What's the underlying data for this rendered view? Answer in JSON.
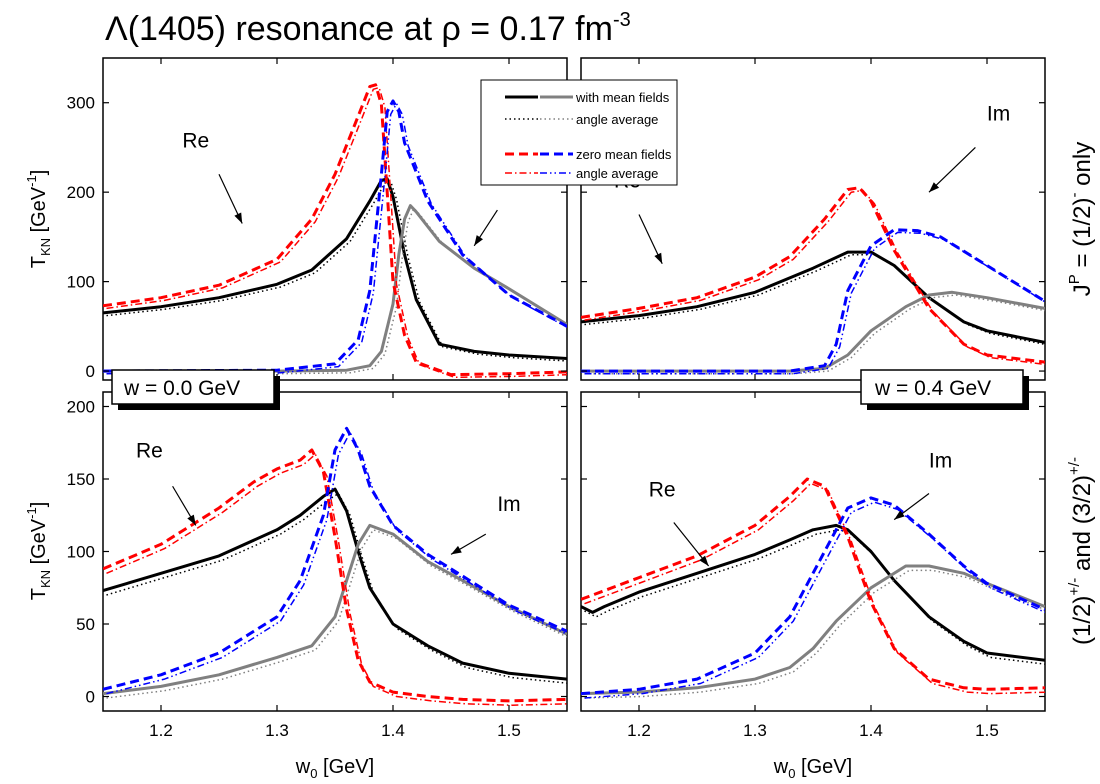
{
  "figure": {
    "title_main": "Λ(1405) resonance at ρ = 0.17 fm",
    "title_sup": "-3",
    "xlabel_main": "w",
    "xlabel_sub": "0",
    "xlabel_unit": " [GeV]",
    "ylabel_main": "T",
    "ylabel_sub": "KN",
    "ylabel_unit": " [GeV",
    "ylabel_sup": "-1",
    "ylabel_close": "]",
    "row_label_top": {
      "a": "J",
      "b": "P",
      "c": " = (1/2)",
      "d": "-",
      "e": " only"
    },
    "row_label_bottom": {
      "a": "(1/2)",
      "b": "+/-",
      "c": " and (3/2)",
      "d": "+/-"
    },
    "box_left": "w = 0.0 GeV",
    "box_right": "w = 0.4 GeV",
    "legend": {
      "with_mean_fields": "with mean fields",
      "angle_average_1": "angle average",
      "zero_mean_fields": "zero mean fields",
      "angle_average_2": "angle average"
    },
    "colors": {
      "with_mf": "#000000",
      "with_mf_im": "#808080",
      "zero_mf": "#ff0000",
      "zero_mf_im": "#0000ff"
    }
  },
  "chart_data": [
    {
      "type": "line",
      "panel": "top-left",
      "xlim": [
        1.15,
        1.55
      ],
      "ylim": [
        -10,
        350
      ],
      "xticks": [],
      "yticks": [
        "0",
        "100",
        "200",
        "300"
      ],
      "annotations": [
        "Re",
        "Im"
      ],
      "series": [
        {
          "name": "with mean fields",
          "part": "Re",
          "x": [
            1.15,
            1.2,
            1.25,
            1.3,
            1.33,
            1.36,
            1.38,
            1.39,
            1.395,
            1.4,
            1.41,
            1.42,
            1.44,
            1.47,
            1.5,
            1.55
          ],
          "y": [
            65,
            72,
            82,
            97,
            113,
            148,
            190,
            213,
            215,
            195,
            130,
            80,
            30,
            22,
            18,
            14
          ]
        },
        {
          "name": "with mean fields",
          "part": "Im",
          "x": [
            1.15,
            1.3,
            1.36,
            1.38,
            1.39,
            1.4,
            1.405,
            1.41,
            1.415,
            1.42,
            1.44,
            1.47,
            1.5,
            1.55
          ],
          "y": [
            0,
            0,
            1,
            6,
            22,
            75,
            130,
            170,
            185,
            178,
            145,
            115,
            92,
            52
          ]
        },
        {
          "name": "zero mean fields",
          "part": "Re",
          "x": [
            1.15,
            1.2,
            1.25,
            1.3,
            1.33,
            1.35,
            1.37,
            1.38,
            1.385,
            1.39,
            1.395,
            1.4,
            1.41,
            1.42,
            1.45,
            1.5,
            1.55
          ],
          "y": [
            73,
            82,
            96,
            125,
            170,
            220,
            285,
            318,
            320,
            298,
            200,
            100,
            40,
            10,
            -4,
            -3,
            -1
          ]
        },
        {
          "name": "zero mean fields",
          "part": "Im",
          "x": [
            1.15,
            1.3,
            1.35,
            1.37,
            1.38,
            1.39,
            1.395,
            1.4,
            1.405,
            1.41,
            1.43,
            1.46,
            1.5,
            1.55
          ],
          "y": [
            0,
            1,
            8,
            35,
            90,
            220,
            290,
            302,
            290,
            255,
            190,
            130,
            85,
            50
          ]
        }
      ]
    },
    {
      "type": "line",
      "panel": "top-right",
      "xlim": [
        1.15,
        1.55
      ],
      "ylim": [
        -10,
        350
      ],
      "xticks": [],
      "yticks": [],
      "annotations": [
        "Re",
        "Im"
      ],
      "series": [
        {
          "name": "with mean fields",
          "part": "Re",
          "x": [
            1.15,
            1.2,
            1.25,
            1.3,
            1.35,
            1.38,
            1.4,
            1.42,
            1.45,
            1.48,
            1.5,
            1.55
          ],
          "y": [
            55,
            62,
            72,
            88,
            115,
            133,
            133,
            118,
            82,
            55,
            45,
            32
          ]
        },
        {
          "name": "with mean fields",
          "part": "Im",
          "x": [
            1.15,
            1.33,
            1.36,
            1.38,
            1.4,
            1.43,
            1.45,
            1.47,
            1.5,
            1.55
          ],
          "y": [
            0,
            0,
            3,
            18,
            45,
            72,
            85,
            88,
            82,
            70
          ]
        },
        {
          "name": "zero mean fields",
          "part": "Re",
          "x": [
            1.15,
            1.2,
            1.25,
            1.3,
            1.33,
            1.36,
            1.38,
            1.39,
            1.4,
            1.42,
            1.45,
            1.48,
            1.5,
            1.55
          ],
          "y": [
            60,
            70,
            82,
            105,
            128,
            170,
            203,
            205,
            190,
            135,
            70,
            30,
            18,
            10
          ]
        },
        {
          "name": "zero mean fields",
          "part": "Im",
          "x": [
            1.15,
            1.33,
            1.36,
            1.37,
            1.38,
            1.4,
            1.42,
            1.44,
            1.46,
            1.5,
            1.55
          ],
          "y": [
            0,
            0,
            6,
            30,
            90,
            140,
            158,
            157,
            150,
            118,
            78
          ]
        }
      ]
    },
    {
      "type": "line",
      "panel": "bottom-left",
      "xlim": [
        1.15,
        1.55
      ],
      "ylim": [
        -10,
        210
      ],
      "xticks": [
        "1.2",
        "1.3",
        "1.4",
        "1.5"
      ],
      "yticks": [
        "0",
        "50",
        "100",
        "150",
        "200"
      ],
      "annotations": [
        "Re",
        "Im"
      ],
      "series": [
        {
          "name": "with mean fields",
          "part": "Re",
          "x": [
            1.15,
            1.2,
            1.25,
            1.3,
            1.32,
            1.34,
            1.35,
            1.36,
            1.37,
            1.38,
            1.4,
            1.43,
            1.46,
            1.5,
            1.55
          ],
          "y": [
            73,
            85,
            97,
            115,
            125,
            138,
            143,
            128,
            100,
            75,
            50,
            35,
            23,
            16,
            12
          ]
        },
        {
          "name": "with mean fields",
          "part": "Im",
          "x": [
            1.15,
            1.2,
            1.25,
            1.3,
            1.33,
            1.35,
            1.36,
            1.37,
            1.38,
            1.4,
            1.43,
            1.46,
            1.5,
            1.55
          ],
          "y": [
            2,
            7,
            15,
            27,
            35,
            55,
            80,
            105,
            118,
            112,
            93,
            80,
            62,
            43
          ]
        },
        {
          "name": "zero mean fields",
          "part": "Re",
          "x": [
            1.15,
            1.2,
            1.25,
            1.28,
            1.3,
            1.32,
            1.33,
            1.34,
            1.35,
            1.36,
            1.37,
            1.38,
            1.4,
            1.43,
            1.46,
            1.5,
            1.55
          ],
          "y": [
            88,
            105,
            130,
            148,
            157,
            163,
            170,
            155,
            110,
            60,
            25,
            10,
            3,
            0,
            -2,
            -3,
            -2
          ]
        },
        {
          "name": "zero mean fields",
          "part": "Im",
          "x": [
            1.15,
            1.2,
            1.25,
            1.3,
            1.32,
            1.34,
            1.35,
            1.36,
            1.37,
            1.38,
            1.4,
            1.43,
            1.46,
            1.5,
            1.55
          ],
          "y": [
            5,
            15,
            30,
            55,
            80,
            125,
            170,
            185,
            170,
            145,
            118,
            98,
            83,
            63,
            45
          ]
        }
      ]
    },
    {
      "type": "line",
      "panel": "bottom-right",
      "xlim": [
        1.15,
        1.55
      ],
      "ylim": [
        -10,
        210
      ],
      "xticks": [
        "1.2",
        "1.3",
        "1.4",
        "1.5"
      ],
      "yticks": [],
      "annotations": [
        "Re",
        "Im"
      ],
      "series": [
        {
          "name": "with mean fields",
          "part": "Re",
          "x": [
            1.15,
            1.16,
            1.17,
            1.2,
            1.25,
            1.3,
            1.33,
            1.35,
            1.37,
            1.38,
            1.4,
            1.42,
            1.45,
            1.48,
            1.5,
            1.55
          ],
          "y": [
            62,
            58,
            62,
            72,
            85,
            98,
            108,
            115,
            118,
            115,
            100,
            80,
            55,
            38,
            30,
            25
          ]
        },
        {
          "name": "with mean fields",
          "part": "Im",
          "x": [
            1.15,
            1.2,
            1.25,
            1.3,
            1.33,
            1.35,
            1.37,
            1.4,
            1.43,
            1.45,
            1.48,
            1.5,
            1.55
          ],
          "y": [
            2,
            3,
            6,
            12,
            20,
            33,
            52,
            75,
            90,
            90,
            85,
            78,
            62
          ]
        },
        {
          "name": "zero mean fields",
          "part": "Re",
          "x": [
            1.15,
            1.2,
            1.25,
            1.3,
            1.33,
            1.345,
            1.36,
            1.38,
            1.4,
            1.42,
            1.45,
            1.48,
            1.5,
            1.55
          ],
          "y": [
            67,
            82,
            97,
            118,
            138,
            150,
            145,
            110,
            65,
            33,
            12,
            6,
            5,
            6
          ]
        },
        {
          "name": "zero mean fields",
          "part": "Im",
          "x": [
            1.15,
            1.2,
            1.25,
            1.3,
            1.33,
            1.36,
            1.38,
            1.4,
            1.42,
            1.45,
            1.48,
            1.5,
            1.55
          ],
          "y": [
            2,
            5,
            12,
            30,
            55,
            100,
            130,
            137,
            132,
            112,
            90,
            78,
            60
          ]
        }
      ]
    }
  ]
}
